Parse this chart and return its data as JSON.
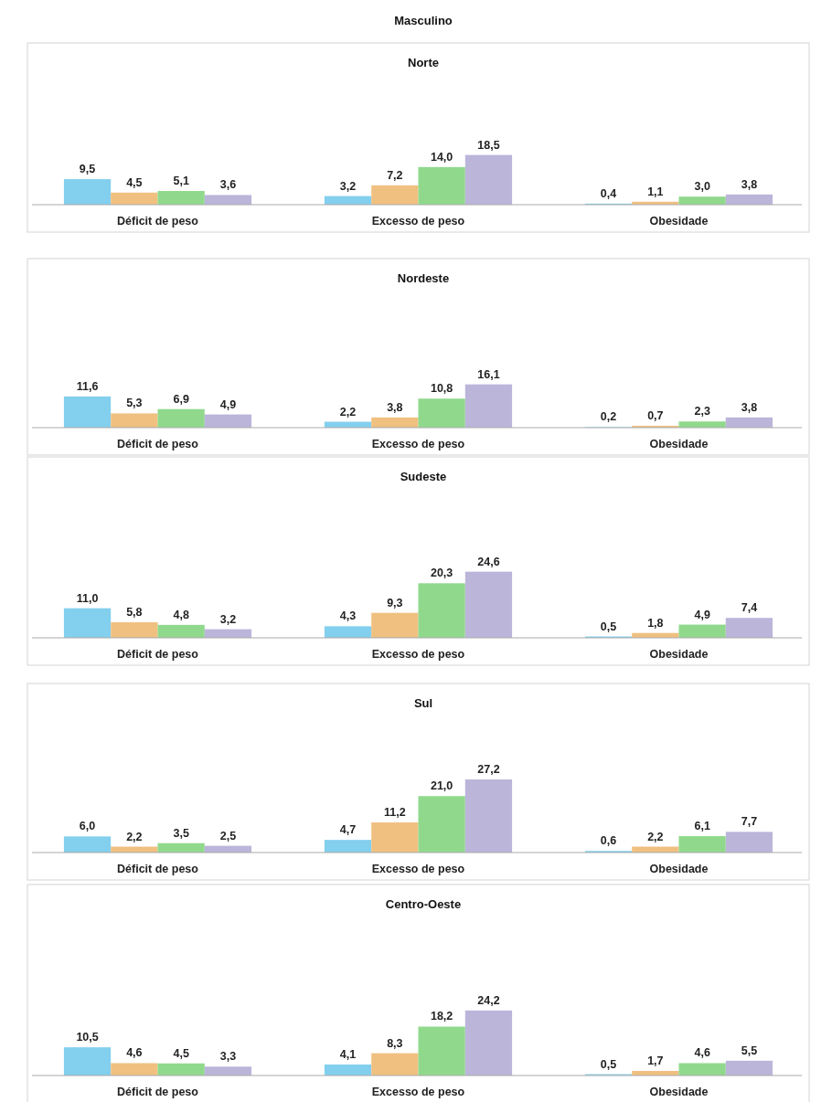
{
  "chart_data": [
    {
      "type": "bar",
      "title": "Masculino",
      "subtitle": "Norte",
      "categories": [
        "Déficit de peso",
        "Excesso de peso",
        "Obesidade"
      ],
      "tick_labels": "x",
      "series": [
        {
          "color": "#83cfee",
          "values": [
            9.5,
            3.2,
            0.4
          ],
          "value_labels": [
            "9,5",
            "3,2",
            "0,4"
          ]
        },
        {
          "color": "#f0c080",
          "values": [
            4.5,
            7.2,
            1.1
          ],
          "value_labels": [
            "4,5",
            "7,2",
            "1,1"
          ]
        },
        {
          "color": "#90d98c",
          "values": [
            5.1,
            14.0,
            3.0
          ],
          "value_labels": [
            "5,1",
            "14,0",
            "3,0"
          ]
        },
        {
          "color": "#bbb5da",
          "values": [
            3.6,
            18.5,
            3.8
          ],
          "value_labels": [
            "3,6",
            "18,5",
            "3,8"
          ]
        }
      ]
    },
    {
      "type": "bar",
      "title": "Nordeste",
      "categories": [
        "Déficit de peso",
        "Excesso de peso",
        "Obesidade"
      ],
      "tick_labels": "x",
      "series": [
        {
          "color": "#83cfee",
          "values": [
            11.6,
            2.2,
            0.2
          ],
          "value_labels": [
            "11,6",
            "2,2",
            "0,2"
          ]
        },
        {
          "color": "#f0c080",
          "values": [
            5.3,
            3.8,
            0.7
          ],
          "value_labels": [
            "5,3",
            "3,8",
            "0,7"
          ]
        },
        {
          "color": "#90d98c",
          "values": [
            6.9,
            10.8,
            2.3
          ],
          "value_labels": [
            "6,9",
            "10,8",
            "2,3"
          ]
        },
        {
          "color": "#bbb5da",
          "values": [
            4.9,
            16.1,
            3.8
          ],
          "value_labels": [
            "4,9",
            "16,1",
            "3,8"
          ]
        }
      ]
    },
    {
      "type": "bar",
      "title": "Sudeste",
      "categories": [
        "Déficit de peso",
        "Excesso de peso",
        "Obesidade"
      ],
      "tick_labels": "x",
      "series": [
        {
          "color": "#83cfee",
          "values": [
            11.0,
            4.3,
            0.5
          ],
          "value_labels": [
            "11,0",
            "4,3",
            "0,5"
          ]
        },
        {
          "color": "#f0c080",
          "values": [
            5.8,
            9.3,
            1.8
          ],
          "value_labels": [
            "5,8",
            "9,3",
            "1,8"
          ]
        },
        {
          "color": "#90d98c",
          "values": [
            4.8,
            20.3,
            4.9
          ],
          "value_labels": [
            "4,8",
            "20,3",
            "4,9"
          ]
        },
        {
          "color": "#bbb5da",
          "values": [
            3.2,
            24.6,
            7.4
          ],
          "value_labels": [
            "3,2",
            "24,6",
            "7,4"
          ]
        }
      ]
    },
    {
      "type": "bar",
      "title": "Sul",
      "categories": [
        "Déficit de peso",
        "Excesso de peso",
        "Obesidade"
      ],
      "tick_labels": "x",
      "series": [
        {
          "color": "#83cfee",
          "values": [
            6.0,
            4.7,
            0.6
          ],
          "value_labels": [
            "6,0",
            "4,7",
            "0,6"
          ]
        },
        {
          "color": "#f0c080",
          "values": [
            2.2,
            11.2,
            2.2
          ],
          "value_labels": [
            "2,2",
            "11,2",
            "2,2"
          ]
        },
        {
          "color": "#90d98c",
          "values": [
            3.5,
            21.0,
            6.1
          ],
          "value_labels": [
            "3,5",
            "21,0",
            "6,1"
          ]
        },
        {
          "color": "#bbb5da",
          "values": [
            2.5,
            27.2,
            7.7
          ],
          "value_labels": [
            "2,5",
            "27,2",
            "7,7"
          ]
        }
      ]
    },
    {
      "type": "bar",
      "title": "Centro-Oeste",
      "categories": [
        "Déficit de peso",
        "Excesso de peso",
        "Obesidade"
      ],
      "tick_labels": "x",
      "series": [
        {
          "color": "#83cfee",
          "values": [
            10.5,
            4.1,
            0.5
          ],
          "value_labels": [
            "10,5",
            "4,1",
            "0,5"
          ]
        },
        {
          "color": "#f0c080",
          "values": [
            4.6,
            8.3,
            1.7
          ],
          "value_labels": [
            "4,6",
            "8,3",
            "1,7"
          ]
        },
        {
          "color": "#90d98c",
          "values": [
            4.5,
            18.2,
            4.6
          ],
          "value_labels": [
            "4,5",
            "18,2",
            "4,6"
          ]
        },
        {
          "color": "#bbb5da",
          "values": [
            3.3,
            24.2,
            5.5
          ],
          "value_labels": [
            "3,3",
            "24,2",
            "5,5"
          ]
        }
      ]
    }
  ]
}
